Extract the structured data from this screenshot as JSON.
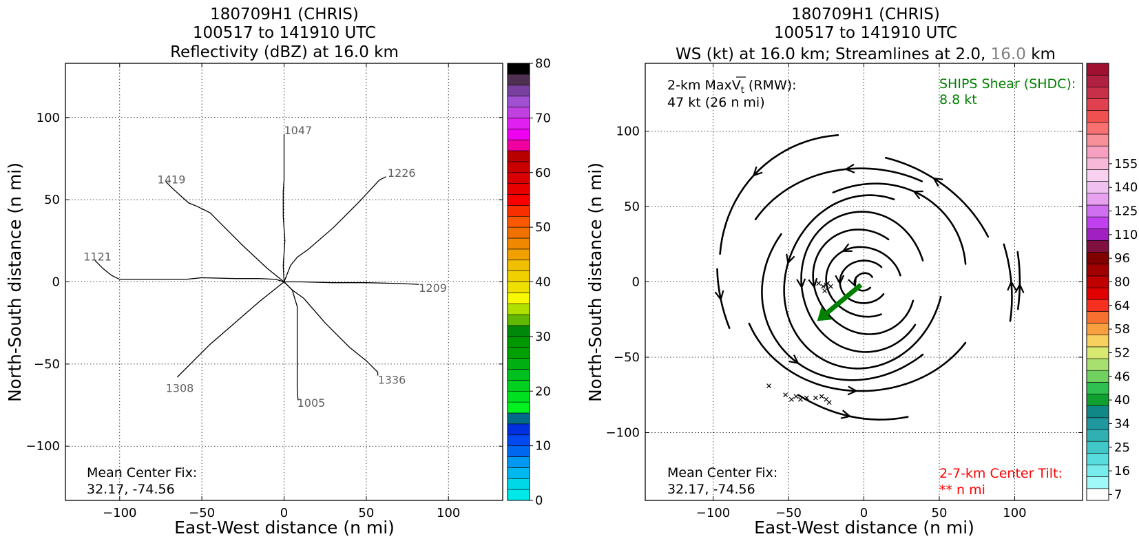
{
  "chart_data": [
    {
      "type": "line",
      "title_lines": [
        "180709H1 (CHRIS)",
        "100517 to 141910 UTC",
        "Reflectivity (dBZ) at 16.0 km"
      ],
      "xlabel": "East-West distance (n mi)",
      "ylabel": "North-South distance (n mi)",
      "xlim": [
        -133,
        133
      ],
      "ylim": [
        -133,
        133
      ],
      "xticks": [
        -100,
        -50,
        0,
        50,
        100
      ],
      "yticks": [
        -100,
        -50,
        0,
        50,
        100
      ],
      "grid": true,
      "series": [
        {
          "name": "1047",
          "points": [
            [
              0,
              0
            ],
            [
              -0.5,
              10
            ],
            [
              0.5,
              25
            ],
            [
              -0.5,
              40
            ],
            [
              -0.5,
              55
            ],
            [
              0,
              62
            ],
            [
              0,
              75
            ],
            [
              0,
              90
            ]
          ],
          "label_at": [
            0,
            92
          ]
        },
        {
          "name": "1226",
          "points": [
            [
              0,
              0
            ],
            [
              4,
              10
            ],
            [
              8,
              15
            ],
            [
              15,
              20
            ],
            [
              30,
              33
            ],
            [
              45,
              48
            ],
            [
              58,
              62
            ],
            [
              62,
              64
            ]
          ],
          "label_at": [
            63,
            66
          ]
        },
        {
          "name": "1209",
          "points": [
            [
              0,
              0
            ],
            [
              10,
              0
            ],
            [
              30,
              -0.5
            ],
            [
              50,
              -0.5
            ],
            [
              70,
              -1
            ],
            [
              82,
              -1.5
            ]
          ],
          "label_at": [
            82,
            -4
          ]
        },
        {
          "name": "1336",
          "points": [
            [
              0,
              0
            ],
            [
              5,
              -5
            ],
            [
              12,
              -10
            ],
            [
              25,
              -25
            ],
            [
              40,
              -40
            ],
            [
              50,
              -48
            ],
            [
              57,
              -55
            ],
            [
              57,
              -57
            ]
          ],
          "label_at": [
            57,
            -60
          ]
        },
        {
          "name": "1005",
          "points": [
            [
              0,
              0
            ],
            [
              5,
              -5
            ],
            [
              8,
              -15
            ],
            [
              8,
              -30
            ],
            [
              8,
              -50
            ],
            [
              8,
              -65
            ],
            [
              8.5,
              -72
            ]
          ],
          "label_at": [
            8,
            -74
          ]
        },
        {
          "name": "1308",
          "points": [
            [
              0,
              0
            ],
            [
              -15,
              -12
            ],
            [
              -30,
              -25
            ],
            [
              -45,
              -38
            ],
            [
              -55,
              -48
            ],
            [
              -65,
              -58
            ]
          ],
          "label_at": [
            -72,
            -65
          ]
        },
        {
          "name": "1121",
          "points": [
            [
              0,
              0
            ],
            [
              -5,
              1.5
            ],
            [
              -15,
              2
            ],
            [
              -30,
              2
            ],
            [
              -50,
              2.5
            ],
            [
              -55,
              2
            ],
            [
              -60,
              1.5
            ],
            [
              -70,
              1.5
            ],
            [
              -90,
              1.5
            ],
            [
              -100,
              1.5
            ],
            [
              -105,
              4
            ],
            [
              -110,
              8
            ],
            [
              -115,
              13
            ]
          ],
          "label_at": [
            -122,
            15
          ]
        },
        {
          "name": "1419",
          "points": [
            [
              0,
              0
            ],
            [
              -10,
              8
            ],
            [
              -25,
              22
            ],
            [
              -38,
              35
            ],
            [
              -45,
              42
            ],
            [
              -53,
              46
            ],
            [
              -58,
              48
            ],
            [
              -68,
              57
            ],
            [
              -72,
              61
            ]
          ],
          "label_at": [
            -77,
            62
          ]
        }
      ],
      "annotation": {
        "line1": "Mean Center Fix:",
        "line2": "32.17, -74.56"
      },
      "colorbar": {
        "min": 0,
        "max": 80,
        "step": 2.5,
        "ticks": [
          0,
          10,
          20,
          30,
          40,
          50,
          60,
          70,
          80
        ],
        "colors": [
          "#00e8e8",
          "#00d8e8",
          "#00b8f0",
          "#0098f0",
          "#0068f0",
          "#0048f0",
          "#0030e0",
          "#006a88",
          "#00f020",
          "#00e020",
          "#00d020",
          "#00c020",
          "#00b010",
          "#00a000",
          "#009800",
          "#00880a",
          "#60b800",
          "#b0e000",
          "#f8f800",
          "#f0e000",
          "#f0d000",
          "#f0c000",
          "#f0a000",
          "#f08800",
          "#f07000",
          "#f85800",
          "#f83000",
          "#f80000",
          "#e80000",
          "#d80000",
          "#c80000",
          "#b80000",
          "#f000a0",
          "#f000f0",
          "#e020f0",
          "#c040e0",
          "#a050d0",
          "#7a40a0",
          "#503050",
          "#000000"
        ]
      }
    },
    {
      "type": "streamline",
      "title_lines": [
        "180709H1 (CHRIS)",
        "100517 to 141910 UTC"
      ],
      "title_line3": {
        "main": "WS (kt) at 16.0 km; Streamlines at 2.0,",
        "gray": "16.0",
        "suffix": "km"
      },
      "xlabel": "East-West distance (n mi)",
      "ylabel": "North-South distance (n mi)",
      "xlim": [
        -145,
        145
      ],
      "ylim": [
        -145,
        145
      ],
      "xticks": [
        -100,
        -50,
        0,
        50,
        100
      ],
      "yticks": [
        -100,
        -50,
        0,
        50,
        100
      ],
      "grid": true,
      "top_left_note": {
        "line1": "2-km Max",
        "vt": "V",
        "sub": "t",
        "after": " (RMW):",
        "line2": "47 kt (26 n mi)"
      },
      "shear": {
        "line1": "SHIPS Shear (SHDC):",
        "line2": "8.8 kt",
        "color": "#008000",
        "vector": [
          [
            -2,
            -2
          ],
          [
            -31,
            -26
          ]
        ]
      },
      "tilt": {
        "line1": "2-7-km Center Tilt:",
        "line2": "** n mi",
        "color": "#ff0000"
      },
      "annotation": {
        "line1": "Mean Center Fix:",
        "line2": "32.17, -74.56"
      },
      "x_markers": [
        [
          -30,
          -1
        ],
        [
          -27,
          -3
        ],
        [
          -24,
          -1
        ],
        [
          -26,
          -6
        ],
        [
          -22,
          -3
        ],
        [
          -25,
          -2
        ],
        [
          -63,
          -69
        ],
        [
          -52,
          -75
        ],
        [
          -48,
          -78
        ],
        [
          -45,
          -76
        ],
        [
          -42,
          -78
        ],
        [
          -38,
          -77
        ],
        [
          -32,
          -77
        ],
        [
          -28,
          -76
        ],
        [
          -25,
          -78
        ],
        [
          -23,
          -80
        ]
      ],
      "circles": [
        {
          "r": 6,
          "start": 30,
          "end": 320,
          "arrow": 0.6
        },
        {
          "r": 15,
          "start": 40,
          "end": 330,
          "arrow": 0.5
        },
        {
          "r": 24,
          "start": 10,
          "end": 300,
          "arrow": 0.4
        },
        {
          "r": 34,
          "start": 60,
          "end": 340,
          "arrow": 0.45
        },
        {
          "r": 44,
          "start": 20,
          "end": 320,
          "arrow": 0.55
        },
        {
          "r": 55,
          "start": 70,
          "end": 350,
          "arrow": 0.35
        },
        {
          "r": 66,
          "start": 10,
          "end": 110,
          "arrow": 0.5
        },
        {
          "r": 66,
          "start": 150,
          "end": 310,
          "arrow": 0.5
        },
        {
          "r": 77,
          "start": 200,
          "end": 330,
          "arrow": 0.5
        },
        {
          "r": 80,
          "start": 60,
          "end": 150,
          "arrow": 0.45
        },
        {
          "r": 88,
          "start": 20,
          "end": 80,
          "arrow": 0.6
        },
        {
          "r": 96,
          "start": 100,
          "end": 170,
          "arrow": 0.5
        },
        {
          "r": 100,
          "start": 175,
          "end": 200,
          "arrow": 0.5
        },
        {
          "r": 102,
          "start": -15,
          "end": 15,
          "arrow": 0.5
        },
        {
          "r": 92,
          "start": 240,
          "end": 290,
          "arrow": 0.5
        },
        {
          "r": 110,
          "start": -10,
          "end": 12,
          "arrow": 0.4
        }
      ],
      "colorbar": {
        "tick_labels": [
          "7",
          "16",
          "25",
          "34",
          "40",
          "46",
          "52",
          "58",
          "64",
          "80",
          "96",
          "110",
          "125",
          "140",
          "155"
        ],
        "tick_indices": [
          0,
          2,
          4,
          6,
          8,
          10,
          12,
          14,
          16,
          18,
          20,
          22,
          24,
          26,
          28
        ],
        "colors": [
          "#ffffff",
          "#a0f8f8",
          "#78ecec",
          "#58dcdc",
          "#40c8c8",
          "#30b0b0",
          "#2098a0",
          "#108888",
          "#10a030",
          "#30c050",
          "#70d060",
          "#a8e070",
          "#d8e870",
          "#f8d060",
          "#f8a040",
          "#f87030",
          "#f83020",
          "#e00000",
          "#c00000",
          "#a00000",
          "#800000",
          "#801040",
          "#a020c0",
          "#c040f0",
          "#d070f0",
          "#e8a0f0",
          "#f0c0f0",
          "#f8d0f0",
          "#f8b8d8",
          "#f8a0c0",
          "#f89098",
          "#f87070",
          "#f05050",
          "#e04050",
          "#c83048",
          "#b02040",
          "#a01030"
        ]
      }
    }
  ]
}
